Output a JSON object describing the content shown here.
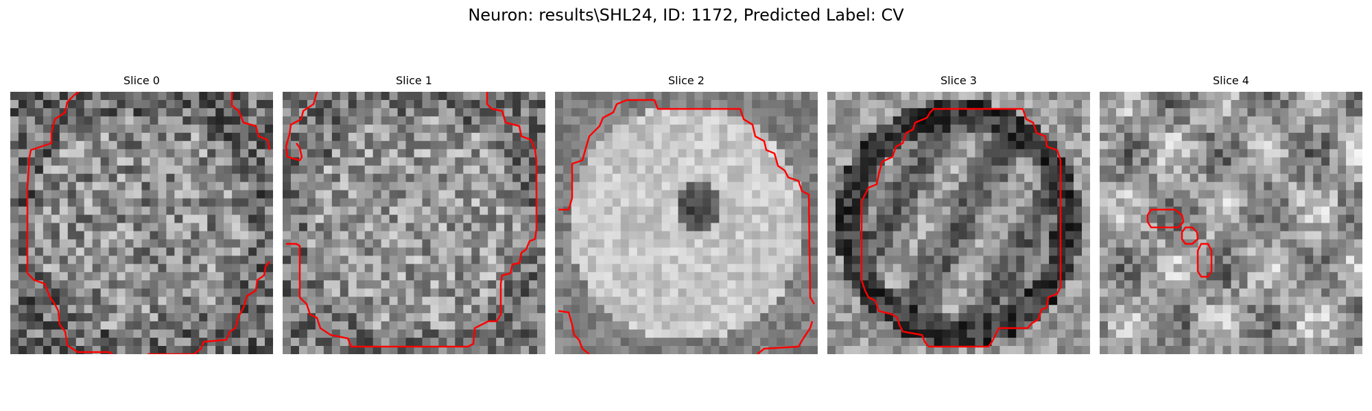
{
  "figure": {
    "title": "Neuron: results\\SHL24, ID: 1172, Predicted Label: CV"
  },
  "panels": [
    {
      "title": "Slice 0",
      "seed": 11,
      "pattern": "speckle"
    },
    {
      "title": "Slice 1",
      "seed": 23,
      "pattern": "speckle-bright"
    },
    {
      "title": "Slice 2",
      "seed": 37,
      "pattern": "donut"
    },
    {
      "title": "Slice 3",
      "seed": 41,
      "pattern": "dark-ring"
    },
    {
      "title": "Slice 4",
      "seed": 53,
      "pattern": "mottled"
    }
  ],
  "colors": {
    "contour": "#ff0000",
    "background": "#ffffff"
  }
}
